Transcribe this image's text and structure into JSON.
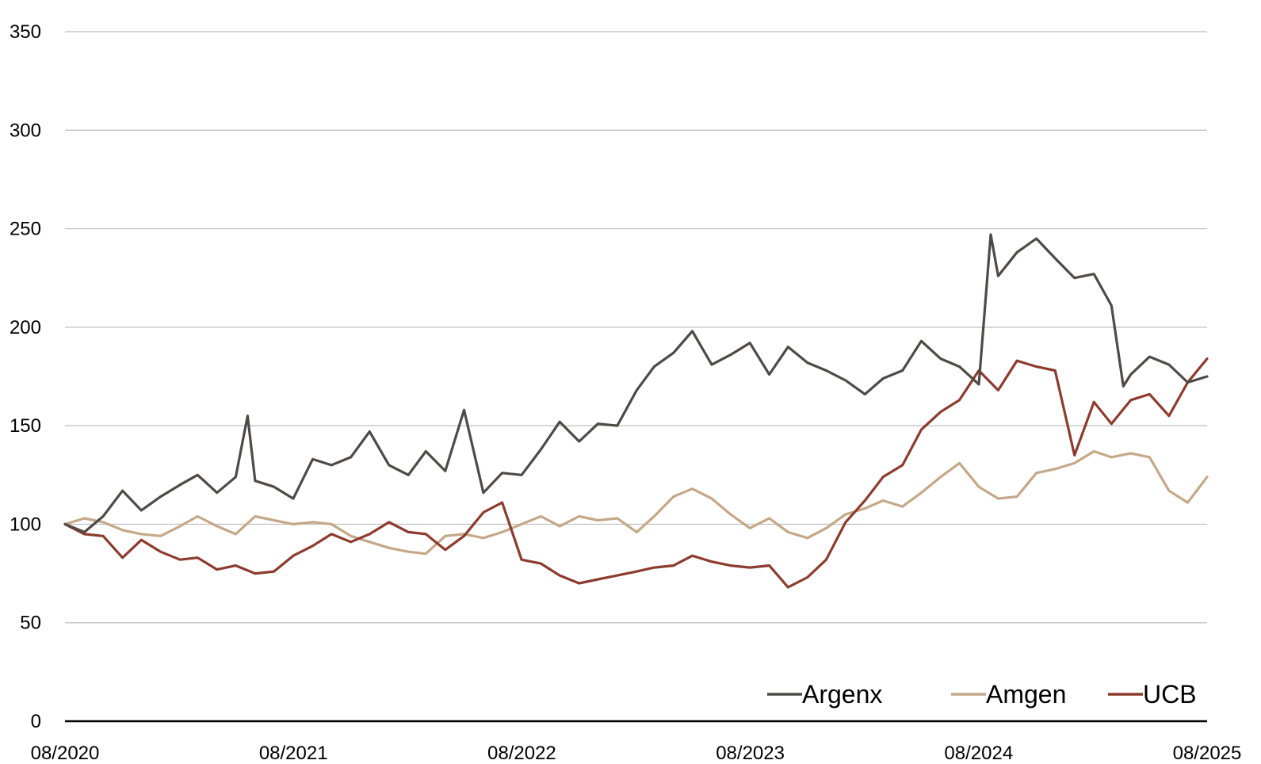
{
  "chart_data": {
    "type": "line",
    "title": "",
    "xlabel": "",
    "ylabel": "",
    "ylim": [
      0,
      350
    ],
    "yticks": [
      0,
      50,
      100,
      150,
      200,
      250,
      300,
      350
    ],
    "xlim": [
      "2020-08",
      "2025-08"
    ],
    "xticks": [
      "08/2020",
      "08/2021",
      "08/2022",
      "08/2023",
      "08/2024",
      "08/2025"
    ],
    "grid": true,
    "legend_position": "bottom-right",
    "series": [
      {
        "name": "Argenx",
        "color": "#4f4a45",
        "points": [
          [
            "2020-08",
            100
          ],
          [
            "2020-09",
            96
          ],
          [
            "2020-10",
            104
          ],
          [
            "2020-11",
            117
          ],
          [
            "2020-12",
            107
          ],
          [
            "2021-01",
            114
          ],
          [
            "2021-02",
            120
          ],
          [
            "2021-03",
            125
          ],
          [
            "2021-04",
            116
          ],
          [
            "2021-05",
            124
          ],
          [
            "2021-05-20",
            155
          ],
          [
            "2021-06",
            122
          ],
          [
            "2021-07",
            119
          ],
          [
            "2021-08",
            113
          ],
          [
            "2021-09",
            133
          ],
          [
            "2021-10",
            130
          ],
          [
            "2021-11",
            134
          ],
          [
            "2021-12",
            147
          ],
          [
            "2022-01",
            130
          ],
          [
            "2022-02",
            125
          ],
          [
            "2022-03",
            137
          ],
          [
            "2022-04",
            127
          ],
          [
            "2022-05",
            158
          ],
          [
            "2022-06",
            116
          ],
          [
            "2022-07",
            126
          ],
          [
            "2022-08",
            125
          ],
          [
            "2022-09",
            138
          ],
          [
            "2022-10",
            152
          ],
          [
            "2022-11",
            142
          ],
          [
            "2022-12",
            151
          ],
          [
            "2023-01",
            150
          ],
          [
            "2023-02",
            168
          ],
          [
            "2023-03",
            180
          ],
          [
            "2023-04",
            187
          ],
          [
            "2023-05",
            198
          ],
          [
            "2023-06",
            181
          ],
          [
            "2023-07",
            186
          ],
          [
            "2023-08",
            192
          ],
          [
            "2023-09",
            176
          ],
          [
            "2023-10",
            190
          ],
          [
            "2023-11",
            182
          ],
          [
            "2023-12",
            178
          ],
          [
            "2024-01",
            173
          ],
          [
            "2024-02",
            166
          ],
          [
            "2024-03",
            174
          ],
          [
            "2024-04",
            178
          ],
          [
            "2024-05",
            193
          ],
          [
            "2024-06",
            184
          ],
          [
            "2024-07",
            180
          ],
          [
            "2024-08",
            171
          ],
          [
            "2024-08-20",
            247
          ],
          [
            "2024-09",
            226
          ],
          [
            "2024-10",
            238
          ],
          [
            "2024-11",
            245
          ],
          [
            "2024-12",
            235
          ],
          [
            "2025-01",
            225
          ],
          [
            "2025-02",
            227
          ],
          [
            "2025-03",
            211
          ],
          [
            "2025-03-20",
            170
          ],
          [
            "2025-04",
            176
          ],
          [
            "2025-05",
            185
          ],
          [
            "2025-06",
            181
          ],
          [
            "2025-07",
            172
          ],
          [
            "2025-08",
            175
          ]
        ]
      },
      {
        "name": "Amgen",
        "color": "#c4a888",
        "points": [
          [
            "2020-08",
            100
          ],
          [
            "2020-09",
            103
          ],
          [
            "2020-10",
            101
          ],
          [
            "2020-11",
            97
          ],
          [
            "2020-12",
            95
          ],
          [
            "2021-01",
            94
          ],
          [
            "2021-02",
            99
          ],
          [
            "2021-03",
            104
          ],
          [
            "2021-04",
            99
          ],
          [
            "2021-05",
            95
          ],
          [
            "2021-06",
            104
          ],
          [
            "2021-07",
            102
          ],
          [
            "2021-08",
            100
          ],
          [
            "2021-09",
            101
          ],
          [
            "2021-10",
            100
          ],
          [
            "2021-11",
            94
          ],
          [
            "2021-12",
            91
          ],
          [
            "2022-01",
            88
          ],
          [
            "2022-02",
            86
          ],
          [
            "2022-03",
            85
          ],
          [
            "2022-04",
            94
          ],
          [
            "2022-05",
            95
          ],
          [
            "2022-06",
            93
          ],
          [
            "2022-07",
            96
          ],
          [
            "2022-08",
            100
          ],
          [
            "2022-09",
            104
          ],
          [
            "2022-10",
            99
          ],
          [
            "2022-11",
            104
          ],
          [
            "2022-12",
            102
          ],
          [
            "2023-01",
            103
          ],
          [
            "2023-02",
            96
          ],
          [
            "2023-03",
            104
          ],
          [
            "2023-04",
            114
          ],
          [
            "2023-05",
            118
          ],
          [
            "2023-06",
            113
          ],
          [
            "2023-07",
            105
          ],
          [
            "2023-08",
            98
          ],
          [
            "2023-09",
            103
          ],
          [
            "2023-10",
            96
          ],
          [
            "2023-11",
            93
          ],
          [
            "2023-12",
            98
          ],
          [
            "2024-01",
            105
          ],
          [
            "2024-02",
            108
          ],
          [
            "2024-03",
            112
          ],
          [
            "2024-04",
            109
          ],
          [
            "2024-05",
            116
          ],
          [
            "2024-06",
            124
          ],
          [
            "2024-07",
            131
          ],
          [
            "2024-08",
            119
          ],
          [
            "2024-09",
            113
          ],
          [
            "2024-10",
            114
          ],
          [
            "2024-11",
            126
          ],
          [
            "2024-12",
            128
          ],
          [
            "2025-01",
            131
          ],
          [
            "2025-02",
            137
          ],
          [
            "2025-03",
            134
          ],
          [
            "2025-04",
            136
          ],
          [
            "2025-05",
            134
          ],
          [
            "2025-06",
            117
          ],
          [
            "2025-07",
            111
          ],
          [
            "2025-08",
            124
          ]
        ]
      },
      {
        "name": "UCB",
        "color": "#8c3b2e",
        "points": [
          [
            "2020-08",
            100
          ],
          [
            "2020-09",
            95
          ],
          [
            "2020-10",
            94
          ],
          [
            "2020-11",
            83
          ],
          [
            "2020-12",
            92
          ],
          [
            "2021-01",
            86
          ],
          [
            "2021-02",
            82
          ],
          [
            "2021-03",
            83
          ],
          [
            "2021-04",
            77
          ],
          [
            "2021-05",
            79
          ],
          [
            "2021-06",
            75
          ],
          [
            "2021-07",
            76
          ],
          [
            "2021-08",
            84
          ],
          [
            "2021-09",
            89
          ],
          [
            "2021-10",
            95
          ],
          [
            "2021-11",
            91
          ],
          [
            "2021-12",
            95
          ],
          [
            "2022-01",
            101
          ],
          [
            "2022-02",
            96
          ],
          [
            "2022-03",
            95
          ],
          [
            "2022-04",
            87
          ],
          [
            "2022-05",
            94
          ],
          [
            "2022-06",
            106
          ],
          [
            "2022-07",
            111
          ],
          [
            "2022-08",
            82
          ],
          [
            "2022-09",
            80
          ],
          [
            "2022-10",
            74
          ],
          [
            "2022-11",
            70
          ],
          [
            "2022-12",
            72
          ],
          [
            "2023-01",
            74
          ],
          [
            "2023-02",
            76
          ],
          [
            "2023-03",
            78
          ],
          [
            "2023-04",
            79
          ],
          [
            "2023-05",
            84
          ],
          [
            "2023-06",
            81
          ],
          [
            "2023-07",
            79
          ],
          [
            "2023-08",
            78
          ],
          [
            "2023-09",
            79
          ],
          [
            "2023-10",
            68
          ],
          [
            "2023-11",
            73
          ],
          [
            "2023-12",
            82
          ],
          [
            "2024-01",
            101
          ],
          [
            "2024-02",
            112
          ],
          [
            "2024-03",
            124
          ],
          [
            "2024-04",
            130
          ],
          [
            "2024-05",
            148
          ],
          [
            "2024-06",
            157
          ],
          [
            "2024-07",
            163
          ],
          [
            "2024-08",
            178
          ],
          [
            "2024-09",
            168
          ],
          [
            "2024-10",
            183
          ],
          [
            "2024-11",
            180
          ],
          [
            "2024-12",
            178
          ],
          [
            "2025-01",
            135
          ],
          [
            "2025-02",
            162
          ],
          [
            "2025-03",
            151
          ],
          [
            "2025-04",
            163
          ],
          [
            "2025-05",
            166
          ],
          [
            "2025-06",
            155
          ],
          [
            "2025-07",
            172
          ],
          [
            "2025-08",
            184
          ]
        ]
      }
    ]
  }
}
